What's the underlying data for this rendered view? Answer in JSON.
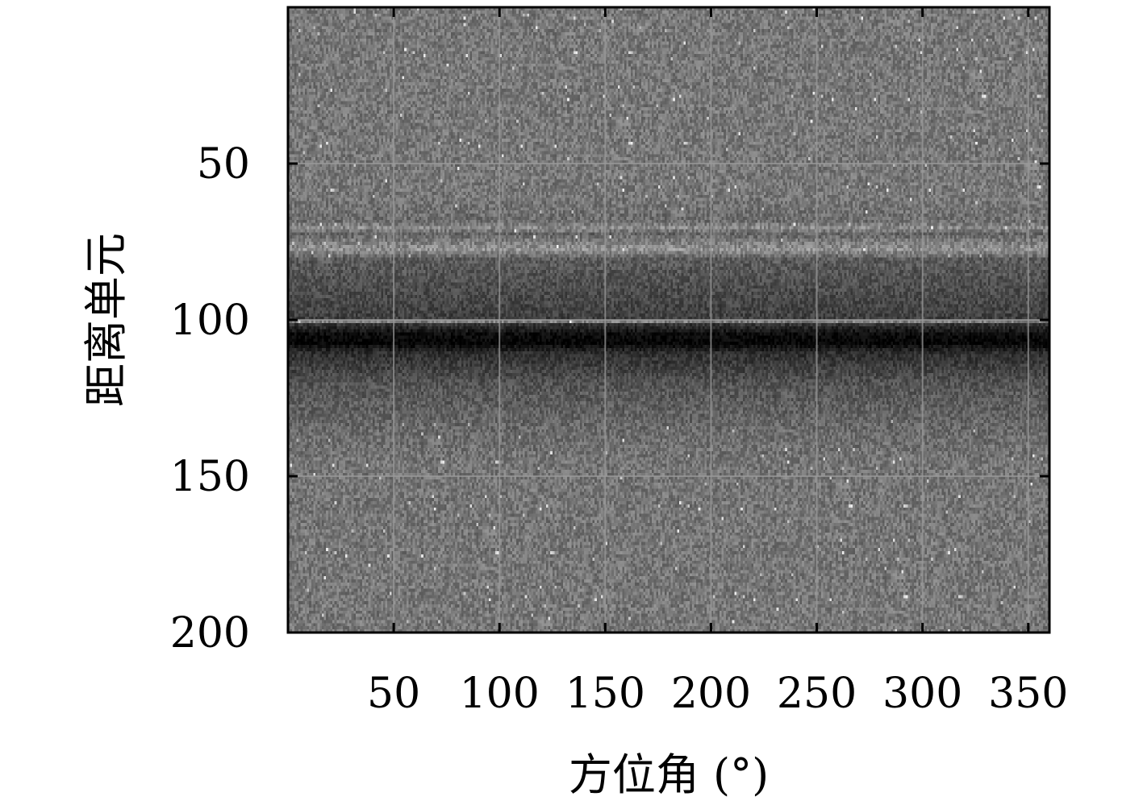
{
  "chart_data": {
    "type": "heatmap",
    "title": "",
    "xlabel": "方位角 (°)",
    "ylabel": "距离单元",
    "xlim": [
      0,
      360
    ],
    "ylim": [
      200,
      0
    ],
    "y_inverted": true,
    "xticks": [
      50,
      100,
      150,
      200,
      250,
      300,
      350
    ],
    "yticks": [
      50,
      100,
      150,
      200
    ],
    "xtick_labels": [
      "50",
      "100",
      "150",
      "200",
      "250",
      "300",
      "350"
    ],
    "ytick_labels": [
      "50",
      "100",
      "150",
      "200"
    ],
    "grid": true,
    "colormap": "gray",
    "colorbar": false,
    "n_azimuth_bins": 360,
    "n_range_cells": 200,
    "range_profile": [
      {
        "range_cell": 0,
        "intensity": 0.47
      },
      {
        "range_cell": 60,
        "intensity": 0.47
      },
      {
        "range_cell": 68,
        "intensity": 0.43
      },
      {
        "range_cell": 70,
        "intensity": 0.55
      },
      {
        "range_cell": 72,
        "intensity": 0.4
      },
      {
        "range_cell": 77,
        "intensity": 0.58
      },
      {
        "range_cell": 80,
        "intensity": 0.36
      },
      {
        "range_cell": 90,
        "intensity": 0.3
      },
      {
        "range_cell": 99,
        "intensity": 0.25
      },
      {
        "range_cell": 100,
        "intensity": 0.5
      },
      {
        "range_cell": 101,
        "intensity": 0.2
      },
      {
        "range_cell": 104,
        "intensity": 0.05
      },
      {
        "range_cell": 107,
        "intensity": 0.02
      },
      {
        "range_cell": 110,
        "intensity": 0.18
      },
      {
        "range_cell": 120,
        "intensity": 0.33
      },
      {
        "range_cell": 135,
        "intensity": 0.42
      },
      {
        "range_cell": 145,
        "intensity": 0.46
      },
      {
        "range_cell": 200,
        "intensity": 0.47
      }
    ]
  }
}
